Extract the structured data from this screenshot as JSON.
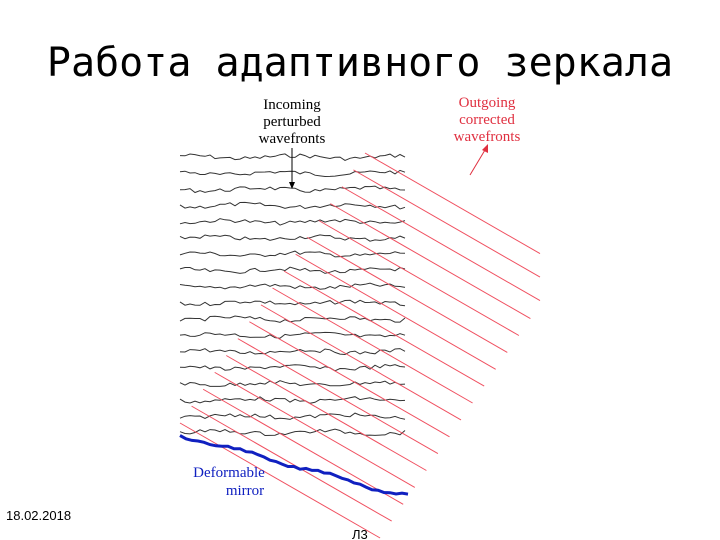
{
  "title": "Работа адаптивного зеркала",
  "diagram": {
    "incoming_label": [
      "Incoming",
      "perturbed",
      "wavefronts"
    ],
    "outgoing_label": [
      "Outgoing",
      "corrected",
      "wavefronts"
    ],
    "mirror_label": [
      "Deformable",
      "mirror"
    ]
  },
  "footer": {
    "date": "18.02.2018",
    "page": "Л3"
  }
}
